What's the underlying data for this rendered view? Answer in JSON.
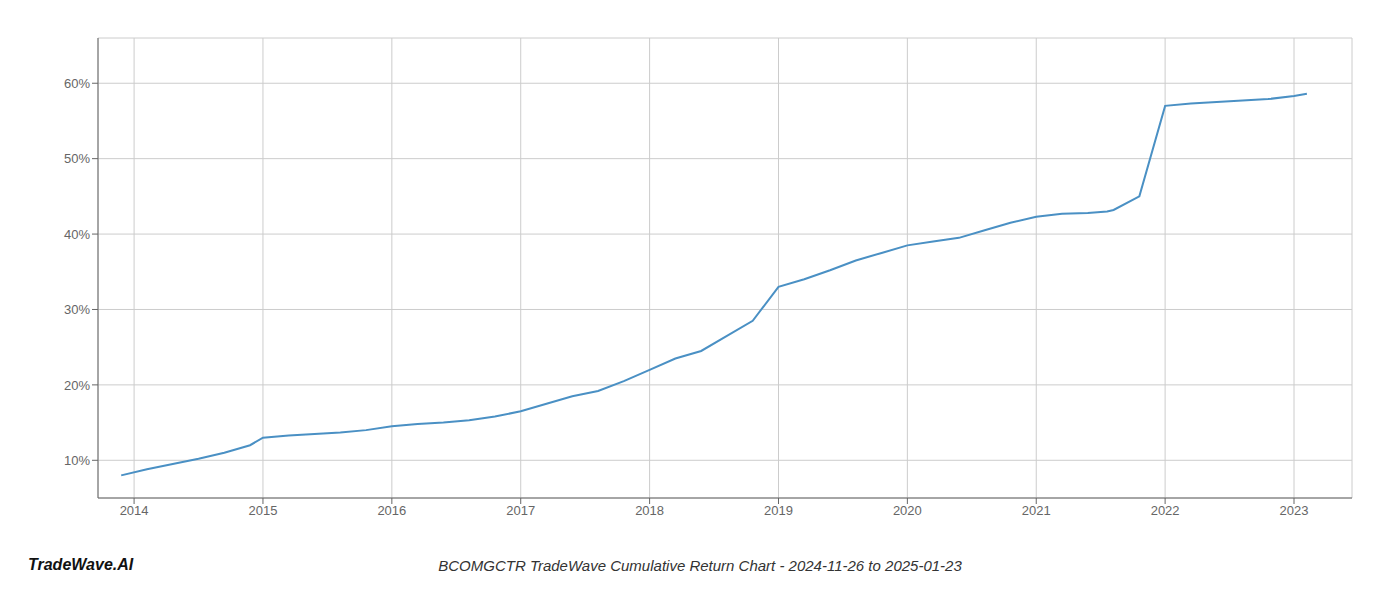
{
  "chart_data": {
    "type": "line",
    "title": "BCOMGCTR TradeWave Cumulative Return Chart - 2024-11-26 to 2025-01-23",
    "annotations": [
      "TradeWave.AI"
    ],
    "x": [
      2013.9,
      2014.1,
      2014.3,
      2014.5,
      2014.7,
      2014.9,
      2015.0,
      2015.2,
      2015.4,
      2015.6,
      2015.8,
      2016.0,
      2016.2,
      2016.4,
      2016.6,
      2016.8,
      2017.0,
      2017.2,
      2017.4,
      2017.6,
      2017.8,
      2018.0,
      2018.2,
      2018.4,
      2018.6,
      2018.8,
      2019.0,
      2019.2,
      2019.4,
      2019.6,
      2019.8,
      2020.0,
      2020.2,
      2020.4,
      2020.6,
      2020.8,
      2021.0,
      2021.2,
      2021.4,
      2021.55,
      2021.6,
      2021.8,
      2022.0,
      2022.2,
      2022.4,
      2022.6,
      2022.8,
      2023.0,
      2023.1
    ],
    "values": [
      8.0,
      8.8,
      9.5,
      10.2,
      11.0,
      12.0,
      13.0,
      13.3,
      13.5,
      13.7,
      14.0,
      14.5,
      14.8,
      15.0,
      15.3,
      15.8,
      16.5,
      17.5,
      18.5,
      19.2,
      20.5,
      22.0,
      23.5,
      24.5,
      26.5,
      28.5,
      33.0,
      34.0,
      35.2,
      36.5,
      37.5,
      38.5,
      39.0,
      39.5,
      40.5,
      41.5,
      42.3,
      42.7,
      42.8,
      43.0,
      43.2,
      45.0,
      57.0,
      57.3,
      57.5,
      57.7,
      57.9,
      58.3,
      58.6
    ],
    "color": "#4a90c4",
    "xlim": [
      2013.72,
      2023.45
    ],
    "ylim": [
      5.0,
      66.0
    ],
    "xticks": [
      2014,
      2015,
      2016,
      2017,
      2018,
      2019,
      2020,
      2021,
      2022,
      2023
    ],
    "yticks": [
      {
        "value": 10,
        "label": "10%"
      },
      {
        "value": 20,
        "label": "20%"
      },
      {
        "value": 30,
        "label": "30%"
      },
      {
        "value": 40,
        "label": "40%"
      },
      {
        "value": 50,
        "label": "50%"
      },
      {
        "value": 60,
        "label": "60%"
      }
    ],
    "grid": true
  }
}
